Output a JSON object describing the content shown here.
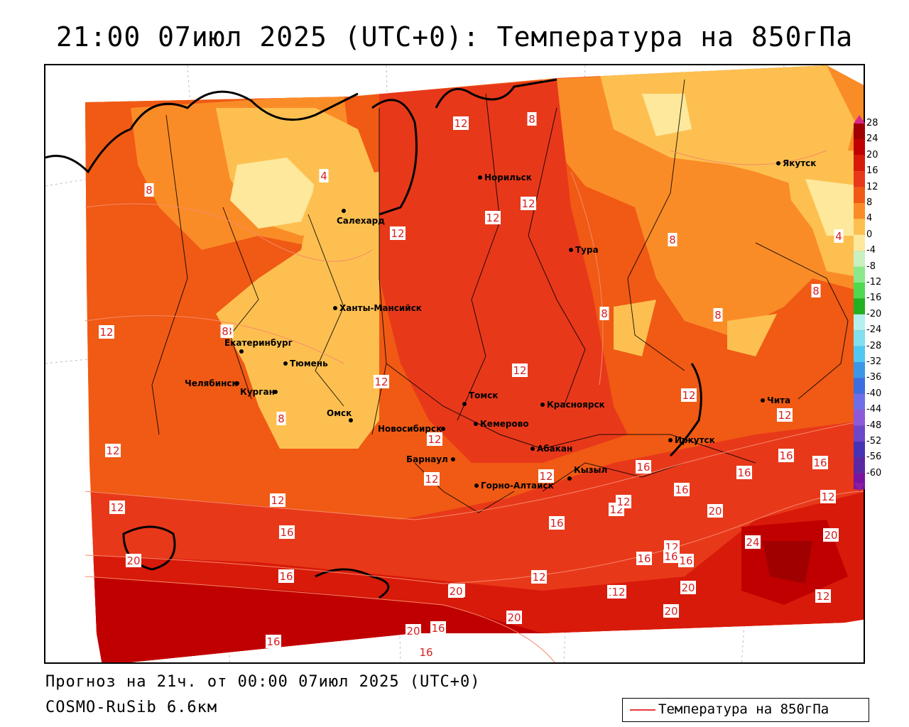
{
  "title": "21:00 07июл 2025 (UTC+0): Температура на 850гПа",
  "forecast_text": "Прогноз на 21ч. от 00:00 07июл 2025 (UTC+0)",
  "model_text": "COSMO-RuSib 6.6км",
  "legend": {
    "line_label": "Температура на 850гПа",
    "line_color": "#e8383d"
  },
  "colorbar": {
    "ticks": [
      "28",
      "24",
      "20",
      "16",
      "12",
      "8",
      "4",
      "0",
      "-4",
      "-8",
      "-12",
      "-16",
      "-20",
      "-24",
      "-28",
      "-32",
      "-36",
      "-40",
      "-44",
      "-48",
      "-52",
      "-56",
      "-60"
    ],
    "colors": [
      "#a00000",
      "#c00000",
      "#d81a0a",
      "#e8381a",
      "#f05a14",
      "#fa8c28",
      "#fdc050",
      "#fde89c",
      "#c8f0c0",
      "#8ce88c",
      "#50d850",
      "#20b020",
      "#b4f0f0",
      "#80e0f0",
      "#50c8f0",
      "#3c96e6",
      "#3c6ee0",
      "#6e6ee6",
      "#8c5ad8",
      "#6e46c8",
      "#4632b4",
      "#5a28a0",
      "#7814a0"
    ]
  },
  "cities": [
    {
      "name": "Норильск"
    },
    {
      "name": "Якутск"
    },
    {
      "name": "Салехард"
    },
    {
      "name": "Тура"
    },
    {
      "name": "Ханты-Мансийск"
    },
    {
      "name": "Екатеринбург"
    },
    {
      "name": "Тюмень"
    },
    {
      "name": "Челябинск"
    },
    {
      "name": "Курган"
    },
    {
      "name": "Омск"
    },
    {
      "name": "Новосибирск"
    },
    {
      "name": "Томск"
    },
    {
      "name": "Красноярск"
    },
    {
      "name": "Кемерово"
    },
    {
      "name": "Абакан"
    },
    {
      "name": "Барнаул"
    },
    {
      "name": "Горно-Алтайск"
    },
    {
      "name": "Кызыл"
    },
    {
      "name": "Иркутск"
    },
    {
      "name": "Чита"
    }
  ],
  "contour_labels": [
    "12",
    "8",
    "8",
    "4",
    "12",
    "12",
    "12",
    "8",
    "12",
    "8",
    "8",
    "4",
    "8",
    "12",
    "8",
    "8",
    "12",
    "12",
    "12",
    "12",
    "8",
    "12",
    "12",
    "12",
    "16",
    "16",
    "12",
    "12",
    "12",
    "16",
    "16",
    "16",
    "16",
    "12",
    "16",
    "20",
    "20",
    "16",
    "20",
    "16",
    "24",
    "20",
    "12",
    "16",
    "12",
    "16",
    "20",
    "16",
    "20",
    "20",
    "16",
    "16",
    "20",
    "12",
    "12",
    "16",
    "16",
    "12"
  ]
}
